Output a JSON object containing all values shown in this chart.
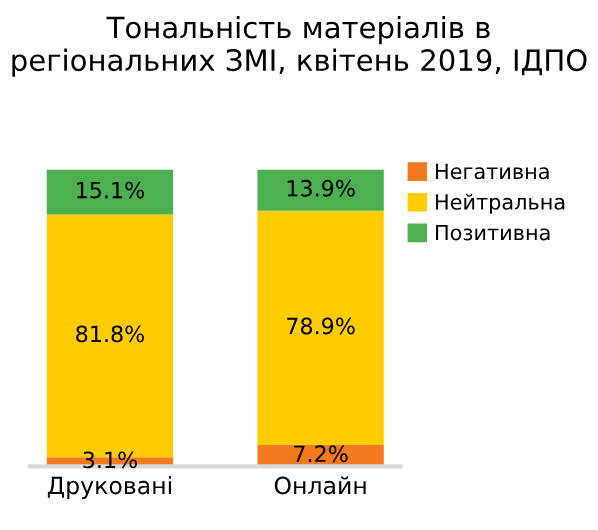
{
  "chart_data": {
    "type": "bar",
    "stacked": true,
    "title": "Тональність матеріалів в регіональних ЗМІ, квітень 2019, ІДПО",
    "categories": [
      "Друковані",
      "Онлайн"
    ],
    "series": [
      {
        "name": "Негативна",
        "color": "#f47a20",
        "values": [
          3.1,
          7.2
        ],
        "value_labels": [
          "3.1%",
          "7.2%"
        ]
      },
      {
        "name": "Нейтральна",
        "color": "#ffcc00",
        "values": [
          81.8,
          78.9
        ],
        "value_labels": [
          "81.8%",
          "78.9%"
        ]
      },
      {
        "name": "Позитивна",
        "color": "#4caf50",
        "values": [
          15.1,
          13.9
        ],
        "value_labels": [
          "15.1%",
          "13.9%"
        ]
      }
    ],
    "legend": "right",
    "grid": false
  }
}
